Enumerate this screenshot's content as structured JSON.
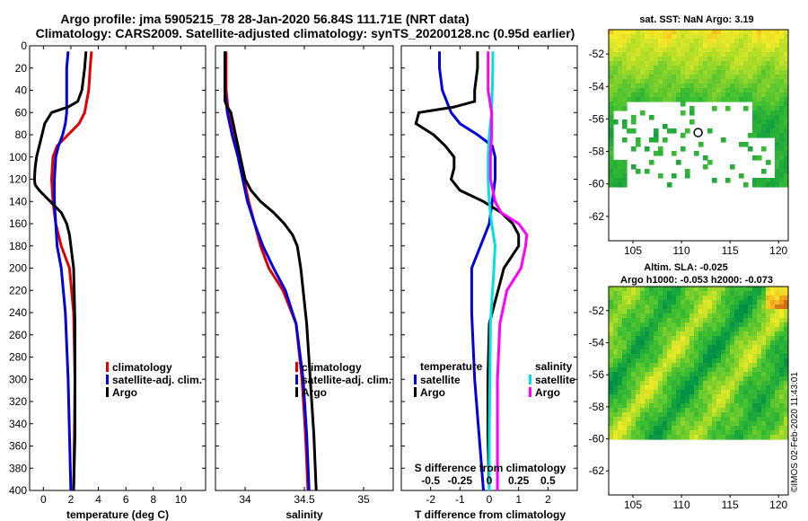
{
  "title_line1": "Argo profile: jma 5905215_78 28-Jan-2020 56.84S 111.71E (NRT data)",
  "title_line2": "Climatology: CARS2009. Satellite-adjusted climatology: synTS_20200128.nc (0.95d earlier)",
  "watermark": "©IMOS 02-Feb-2020 11:43:01",
  "chart_data": [
    {
      "id": "temperature",
      "type": "line",
      "xlabel": "temperature (deg C)",
      "ylabel": "depth",
      "xlim": [
        -1,
        11.8
      ],
      "ylim": [
        0,
        400
      ],
      "xticks": [
        0,
        2,
        4,
        6,
        8,
        10
      ],
      "yticks": [
        0,
        20,
        40,
        60,
        80,
        100,
        120,
        140,
        160,
        180,
        200,
        220,
        240,
        260,
        280,
        300,
        320,
        340,
        360,
        380,
        400
      ],
      "legend": [
        "climatology",
        "satellite-adj. clim.",
        "Argo"
      ],
      "series": [
        {
          "name": "climatology",
          "color": "#e00000",
          "depth": [
            5,
            20,
            40,
            60,
            70,
            80,
            90,
            100,
            120,
            140,
            160,
            180,
            200,
            240,
            300,
            350,
            400
          ],
          "values": [
            3.5,
            3.4,
            3.3,
            3.0,
            2.6,
            1.8,
            1.0,
            0.7,
            0.6,
            0.7,
            0.9,
            1.3,
            1.9,
            2.2,
            2.3,
            2.25,
            2.2
          ]
        },
        {
          "name": "satellite-adj. clim.",
          "color": "#0000e0",
          "depth": [
            5,
            20,
            40,
            60,
            70,
            80,
            90,
            100,
            120,
            140,
            160,
            180,
            200,
            240,
            300,
            350,
            400
          ],
          "values": [
            1.8,
            1.7,
            1.7,
            1.7,
            1.6,
            1.4,
            1.1,
            0.9,
            0.8,
            0.8,
            0.9,
            1.0,
            1.3,
            1.6,
            1.8,
            1.9,
            2.0
          ]
        },
        {
          "name": "Argo",
          "color": "#000000",
          "depth": [
            5,
            20,
            40,
            50,
            55,
            60,
            70,
            80,
            100,
            110,
            120,
            125,
            130,
            140,
            150,
            160,
            170,
            200,
            250,
            300,
            350,
            400
          ],
          "values": [
            3.1,
            3.0,
            2.8,
            2.5,
            1.8,
            0.6,
            0.1,
            -0.1,
            -0.5,
            -0.6,
            -0.65,
            -0.6,
            -0.3,
            0.5,
            1.3,
            1.7,
            1.9,
            2.2,
            2.3,
            2.3,
            2.3,
            2.2
          ]
        }
      ]
    },
    {
      "id": "salinity",
      "type": "line",
      "xlabel": "salinity",
      "ylabel": "depth",
      "xlim": [
        33.75,
        35.25
      ],
      "ylim": [
        0,
        400
      ],
      "xticks": [
        34,
        34.5,
        35
      ],
      "xtick_labels": [
        "34",
        "34.5",
        "35"
      ],
      "legend": [
        "climatology",
        "satellite-adj. clim.",
        "Argo"
      ],
      "series": [
        {
          "name": "climatology",
          "color": "#e00000",
          "depth": [
            5,
            20,
            40,
            60,
            80,
            100,
            120,
            140,
            160,
            180,
            200,
            220,
            250,
            300,
            350,
            400
          ],
          "values": [
            33.84,
            33.84,
            33.84,
            33.86,
            33.9,
            33.95,
            33.99,
            34.03,
            34.08,
            34.13,
            34.2,
            34.32,
            34.43,
            34.48,
            34.51,
            34.53
          ]
        },
        {
          "name": "satellite-adj. clim.",
          "color": "#0000e0",
          "depth": [
            5,
            20,
            40,
            60,
            80,
            100,
            120,
            140,
            160,
            180,
            200,
            220,
            250,
            300,
            350,
            400
          ],
          "values": [
            33.83,
            33.83,
            33.83,
            33.85,
            33.89,
            33.94,
            33.98,
            34.02,
            34.08,
            34.15,
            34.24,
            34.34,
            34.43,
            34.49,
            34.52,
            34.54
          ]
        },
        {
          "name": "Argo",
          "color": "#000000",
          "depth": [
            5,
            20,
            40,
            50,
            55,
            60,
            80,
            100,
            120,
            130,
            140,
            150,
            160,
            170,
            180,
            200,
            250,
            300,
            350,
            400
          ],
          "values": [
            33.83,
            33.83,
            33.83,
            33.83,
            33.85,
            33.88,
            33.92,
            33.96,
            34.0,
            34.05,
            34.13,
            34.24,
            34.33,
            34.4,
            34.44,
            34.47,
            34.52,
            34.55,
            34.58,
            34.6
          ]
        }
      ]
    },
    {
      "id": "difference",
      "type": "line",
      "xlabel": "T difference from climatology",
      "secondary_xlabel": "S difference from climatology",
      "ylabel": "depth",
      "xlim": [
        -3,
        3
      ],
      "ylim": [
        0,
        400
      ],
      "xticks": [
        -2,
        -1,
        0,
        1,
        2
      ],
      "xtick_labels": [
        "-2",
        "-1",
        "0",
        "1",
        "2"
      ],
      "secondary_xtick_labels": [
        "-0.5",
        "-0.25",
        "0",
        "0.25",
        "0.5"
      ],
      "legend_temperature_title": "temperature",
      "legend_salinity_title": "salinity",
      "legend": [
        "satellite",
        "Argo",
        "satellite",
        "Argo"
      ],
      "series": [
        {
          "name": "T satellite",
          "color": "#0000e0",
          "depth": [
            5,
            20,
            40,
            60,
            70,
            80,
            90,
            100,
            120,
            140,
            160,
            180,
            200,
            240,
            300,
            350,
            400
          ],
          "values": [
            -1.7,
            -1.7,
            -1.6,
            -1.3,
            -1.0,
            -0.4,
            0.1,
            0.2,
            0.2,
            0.1,
            0.0,
            -0.3,
            -0.6,
            -0.6,
            -0.5,
            -0.35,
            -0.2
          ]
        },
        {
          "name": "T Argo",
          "color": "#000000",
          "depth": [
            5,
            20,
            40,
            50,
            55,
            60,
            70,
            80,
            90,
            100,
            110,
            120,
            130,
            140,
            150,
            160,
            170,
            180,
            200,
            250,
            300,
            350,
            400
          ],
          "values": [
            -0.4,
            -0.4,
            -0.5,
            -0.5,
            -1.2,
            -2.4,
            -2.5,
            -1.9,
            -1.5,
            -1.2,
            -1.2,
            -1.3,
            -1.0,
            -0.2,
            0.4,
            0.8,
            1.0,
            1.0,
            0.5,
            0.0,
            -0.05,
            -0.05,
            0.0
          ]
        },
        {
          "name": "S satellite",
          "color": "#00e0e0",
          "depth": [
            5,
            20,
            40,
            60,
            80,
            100,
            120,
            140,
            160,
            180,
            200,
            250,
            300,
            350,
            400
          ],
          "values": [
            0.03,
            0.03,
            0.025,
            0.02,
            0.0,
            -0.01,
            -0.01,
            0.0,
            0.02,
            0.05,
            0.04,
            0.01,
            0.005,
            0.0,
            0.0
          ]
        },
        {
          "name": "S Argo",
          "color": "#ff00ff",
          "depth": [
            5,
            20,
            40,
            60,
            80,
            100,
            120,
            140,
            150,
            160,
            170,
            180,
            200,
            220,
            250,
            300,
            350,
            400
          ],
          "values": [
            -0.01,
            -0.01,
            -0.01,
            0.02,
            0.02,
            0.01,
            0.01,
            0.05,
            0.1,
            0.25,
            0.32,
            0.31,
            0.27,
            0.15,
            0.09,
            0.07,
            0.07,
            0.07
          ]
        }
      ]
    },
    {
      "id": "sst_map",
      "type": "heatmap",
      "title": "sat. SST: NaN Argo: 3.19",
      "xlim": [
        102.5,
        121
      ],
      "ylim": [
        -63.5,
        -50.5
      ],
      "xticks": [
        105,
        110,
        115,
        120
      ],
      "yticks": [
        -52,
        -54,
        -56,
        -58,
        -60,
        -62
      ],
      "marker": {
        "lon": 111.71,
        "lat": -56.84
      }
    },
    {
      "id": "sla_map",
      "type": "heatmap",
      "title_line1": "Altim. SLA: -0.025",
      "title_line2": "Argo h1000: -0.053 h2000: -0.073",
      "xlim": [
        102.5,
        121
      ],
      "ylim": [
        -63.5,
        -50.5
      ],
      "xticks": [
        105,
        110,
        115,
        120
      ],
      "yticks": [
        -52,
        -54,
        -56,
        -58,
        -60,
        -62
      ]
    }
  ]
}
